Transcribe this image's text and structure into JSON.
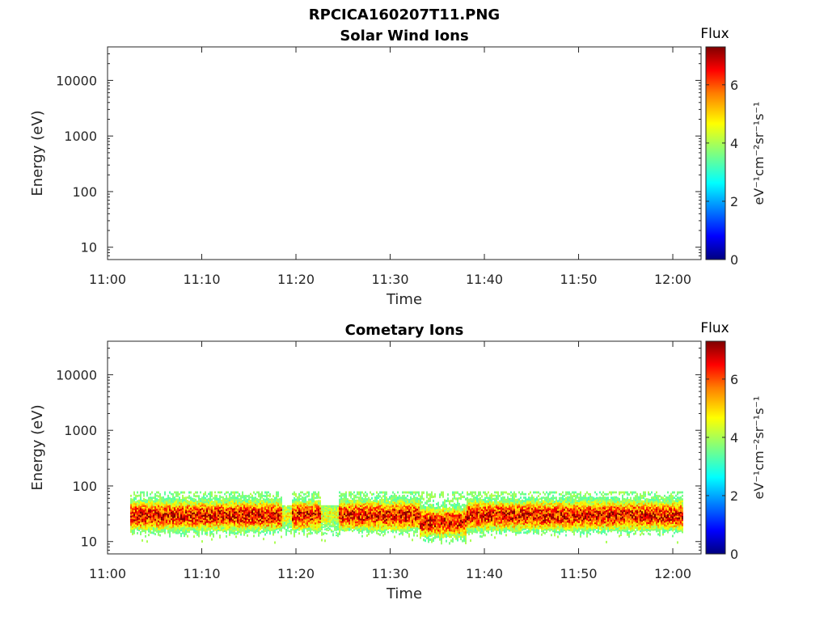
{
  "figure_title": "RPCICA160207T11.PNG",
  "colors": {
    "colormap": [
      "#00007f",
      "#0000ff",
      "#007fff",
      "#00ffff",
      "#7fff7f",
      "#ffff00",
      "#ff7f00",
      "#ff0000",
      "#7f0000"
    ],
    "axes": "#262626"
  },
  "chart_data": [
    {
      "type": "heatmap",
      "title": "Solar Wind Ions",
      "xlabel": "Time",
      "ylabel": "Energy (eV)",
      "x_ticks": [
        "11:00",
        "11:10",
        "11:20",
        "11:30",
        "11:40",
        "11:50",
        "12:00"
      ],
      "x_range": [
        "11:00",
        "12:03"
      ],
      "y_scale": "log",
      "y_ticks": [
        "10",
        "100",
        "1000",
        "10000"
      ],
      "y_range": [
        6,
        40000
      ],
      "colorbar": {
        "title": "Flux",
        "label": "eV⁻¹cm⁻²sr⁻¹s⁻¹",
        "ticks": [
          "0",
          "2",
          "4",
          "6"
        ],
        "range": [
          0,
          7.3
        ]
      },
      "data_present": false
    },
    {
      "type": "heatmap",
      "title": "Cometary Ions",
      "xlabel": "Time",
      "ylabel": "Energy (eV)",
      "x_ticks": [
        "11:00",
        "11:10",
        "11:20",
        "11:30",
        "11:40",
        "11:50",
        "12:00"
      ],
      "x_range": [
        "11:00",
        "12:03"
      ],
      "y_scale": "log",
      "y_ticks": [
        "10",
        "100",
        "1000",
        "10000"
      ],
      "y_range": [
        6,
        40000
      ],
      "colorbar": {
        "title": "Flux",
        "label": "eV⁻¹cm⁻²sr⁻¹s⁻¹",
        "ticks": [
          "0",
          "2",
          "4",
          "6"
        ],
        "range": [
          0,
          7.3
        ]
      },
      "data_present": true,
      "data_time_range": [
        "11:02",
        "12:01"
      ],
      "energy_band_eV": [
        14,
        80
      ],
      "peak_energy_eV": 30,
      "peak_flux": 7
    }
  ]
}
